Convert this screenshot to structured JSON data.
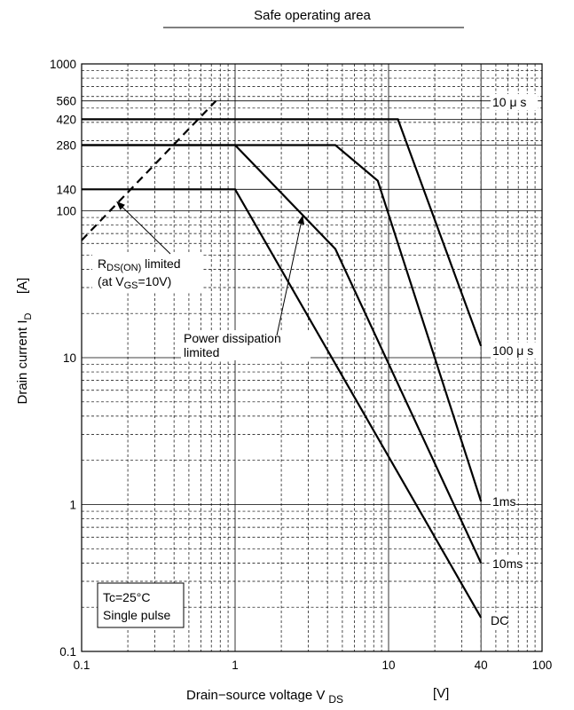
{
  "chart_data": {
    "type": "line",
    "title": "Safe operating area",
    "xlabel": "Drain−source voltage  V",
    "xlabel_sub": "DS",
    "xlabel_unit": "[V]",
    "ylabel": "Drain current  I",
    "ylabel_sub": "D",
    "ylabel_unit": "[A]",
    "x_scale": "log",
    "y_scale": "log",
    "xlim": [
      0.1,
      100
    ],
    "ylim": [
      0.1,
      1000
    ],
    "grid": true,
    "x_ticks": [
      {
        "value": 0.1,
        "label": "0.1"
      },
      {
        "value": 1,
        "label": "1"
      },
      {
        "value": 10,
        "label": "10"
      },
      {
        "value": 40,
        "label": "40"
      },
      {
        "value": 100,
        "label": "100"
      }
    ],
    "y_ticks": [
      {
        "value": 0.1,
        "label": "0.1"
      },
      {
        "value": 1,
        "label": "1"
      },
      {
        "value": 10,
        "label": "10"
      },
      {
        "value": 100,
        "label": "100"
      },
      {
        "value": 140,
        "label": "140"
      },
      {
        "value": 280,
        "label": "280"
      },
      {
        "value": 420,
        "label": "420"
      },
      {
        "value": 560,
        "label": "560"
      },
      {
        "value": 1000,
        "label": "1000"
      }
    ],
    "series": [
      {
        "name": "10 μ s",
        "x": [
          0.1,
          11.5,
          40
        ],
        "y": [
          420,
          420,
          12
        ]
      },
      {
        "name": "100 μ s",
        "x": [
          0.1,
          4.5,
          8.5,
          40
        ],
        "y": [
          280,
          280,
          160,
          1.05
        ]
      },
      {
        "name": "1ms",
        "x": [
          0.1,
          1,
          4.5,
          40
        ],
        "y": [
          280,
          280,
          55,
          0.4
        ]
      },
      {
        "name": "10ms",
        "x": [
          0.1,
          1,
          40
        ],
        "y": [
          140,
          140,
          0.17
        ]
      },
      {
        "name": "DC",
        "x": [],
        "y": []
      }
    ],
    "rds_limit_line": {
      "x": [
        0.1,
        0.75
      ],
      "y": [
        63,
        560
      ]
    },
    "annotations": [
      {
        "lines": [
          {
            "text": "R",
            "sub": "DS(ON)",
            "rest": " limited"
          },
          {
            "text": "(at V",
            "sub": "GS",
            "rest": "=10V)"
          }
        ],
        "arrow_to": {
          "x": 0.17,
          "y": 115
        }
      },
      {
        "lines": [
          {
            "text": "Power dissipation"
          },
          {
            "text": "limited"
          }
        ],
        "arrow_to": {
          "x": 2.75,
          "y": 92
        }
      }
    ],
    "conditions": [
      "Tc=25°C",
      "Single pulse"
    ]
  }
}
